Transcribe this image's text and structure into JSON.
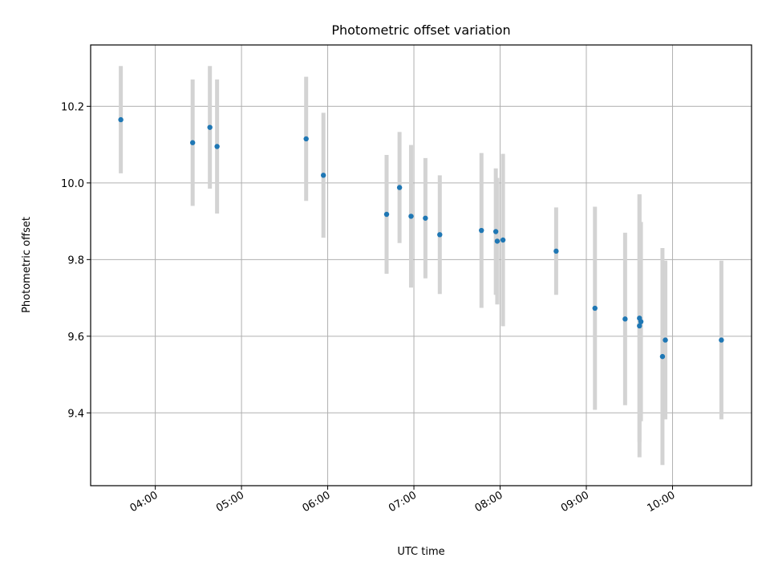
{
  "chart_data": {
    "type": "scatter",
    "title": "Photometric offset variation",
    "xlabel": "UTC time",
    "ylabel": "Photometric offset",
    "x_axis_type": "time",
    "xlim": [
      "03:15",
      "10:55"
    ],
    "ylim": [
      9.21,
      10.36
    ],
    "xticks": [
      "04:00",
      "05:00",
      "06:00",
      "07:00",
      "08:00",
      "09:00",
      "10:00"
    ],
    "yticks": [
      9.4,
      9.6,
      9.8,
      10.0,
      10.2
    ],
    "grid": true,
    "colors": {
      "point": "#1f77b4",
      "errorbar": "#d3d3d3"
    },
    "series": [
      {
        "points": [
          {
            "x": "03:36",
            "y": 10.165,
            "err": 0.14
          },
          {
            "x": "04:26",
            "y": 10.105,
            "err": 0.165
          },
          {
            "x": "04:38",
            "y": 10.145,
            "err": 0.16
          },
          {
            "x": "04:43",
            "y": 10.095,
            "err": 0.175
          },
          {
            "x": "05:45",
            "y": 10.115,
            "err": 0.162
          },
          {
            "x": "05:57",
            "y": 10.02,
            "err": 0.163
          },
          {
            "x": "06:41",
            "y": 9.918,
            "err": 0.155
          },
          {
            "x": "06:50",
            "y": 9.988,
            "err": 0.145
          },
          {
            "x": "06:58",
            "y": 9.913,
            "err": 0.186
          },
          {
            "x": "07:08",
            "y": 9.908,
            "err": 0.157
          },
          {
            "x": "07:18",
            "y": 9.865,
            "err": 0.155
          },
          {
            "x": "07:47",
            "y": 9.876,
            "err": 0.202
          },
          {
            "x": "07:57",
            "y": 9.873,
            "err": 0.165
          },
          {
            "x": "07:58",
            "y": 9.848,
            "err": 0.165
          },
          {
            "x": "08:02",
            "y": 9.851,
            "err": 0.225
          },
          {
            "x": "08:39",
            "y": 9.822,
            "err": 0.114
          },
          {
            "x": "09:06",
            "y": 9.673,
            "err": 0.265
          },
          {
            "x": "09:27",
            "y": 9.645,
            "err": 0.225
          },
          {
            "x": "09:37",
            "y": 9.627,
            "err": 0.343
          },
          {
            "x": "09:37",
            "y": 9.647,
            "err": 0.323
          },
          {
            "x": "09:38",
            "y": 9.638,
            "err": 0.26
          },
          {
            "x": "09:53",
            "y": 9.547,
            "err": 0.283
          },
          {
            "x": "09:55",
            "y": 9.59,
            "err": 0.207
          },
          {
            "x": "10:34",
            "y": 9.59,
            "err": 0.207
          }
        ]
      }
    ]
  }
}
